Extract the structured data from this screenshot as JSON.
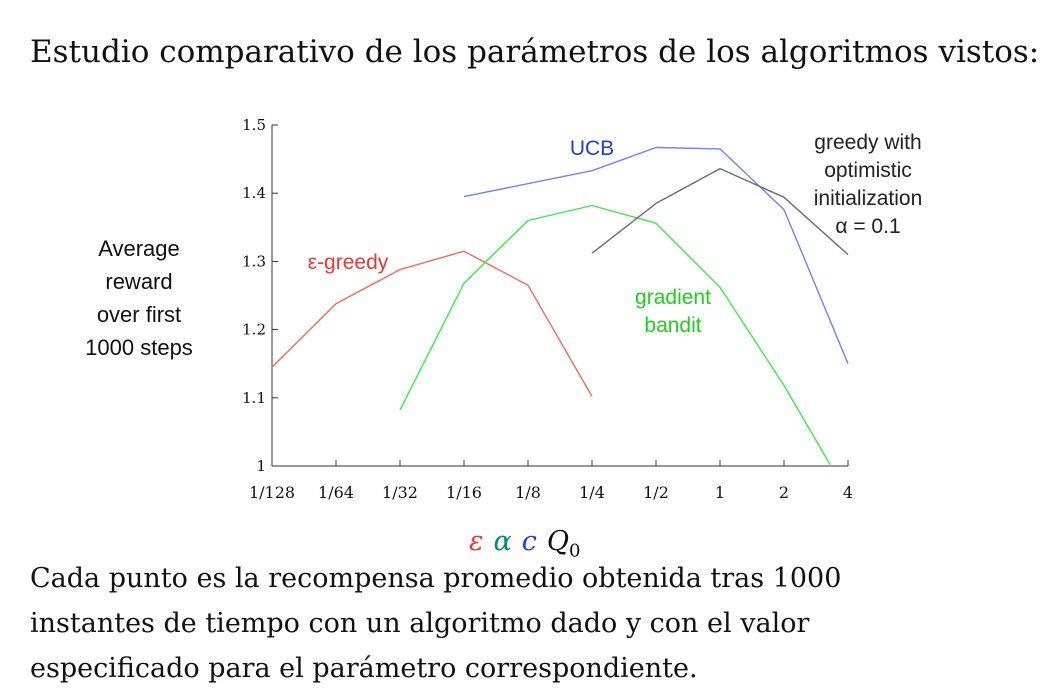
{
  "heading": "Estudio comparativo de los parámetros de los algoritmos vistos:",
  "caption": [
    "Cada punto es la recompensa promedio obtenida tras 1000",
    "instantes de tiempo con un algoritmo dado y con el valor",
    "especificado para el parámetro correspondiente."
  ],
  "param_symbols": [
    {
      "text": "ε",
      "color": "#e53935"
    },
    {
      "text": "α",
      "color": "#00897b"
    },
    {
      "text": "c",
      "color": "#1e3fdd"
    },
    {
      "text": "Q",
      "sub": "0",
      "color": "#111111"
    }
  ],
  "chart_data": {
    "type": "line",
    "title": "",
    "ylabel": [
      "Average",
      "reward",
      "over first",
      "1000 steps"
    ],
    "xlabel": "",
    "x_tick_labels": [
      "1/128",
      "1/64",
      "1/32",
      "1/16",
      "1/8",
      "1/4",
      "1/2",
      "1",
      "2",
      "4"
    ],
    "y_ticks": [
      1,
      1.1,
      1.2,
      1.3,
      1.4,
      1.5
    ],
    "y_tick_labels": [
      "1",
      "1.1",
      "1.2",
      "1.3",
      "1.4",
      "1.5"
    ],
    "ylim": [
      1,
      1.5
    ],
    "x_scale": "log2",
    "series": [
      {
        "name": "ε-greedy",
        "color": "#f06a5e",
        "label_lines": [
          "ε-greedy"
        ],
        "points": [
          [
            0.0078125,
            1.145
          ],
          [
            0.015625,
            1.238
          ],
          [
            0.03125,
            1.288
          ],
          [
            0.0625,
            1.315
          ],
          [
            0.125,
            1.265
          ],
          [
            0.25,
            1.102
          ]
        ]
      },
      {
        "name": "gradient bandit",
        "color": "#3ee84f",
        "label_lines": [
          "gradient",
          "bandit"
        ],
        "points": [
          [
            0.03125,
            1.082
          ],
          [
            0.0625,
            1.268
          ],
          [
            0.125,
            1.36
          ],
          [
            0.25,
            1.382
          ],
          [
            0.5,
            1.356
          ],
          [
            1,
            1.262
          ],
          [
            2,
            1.118
          ],
          [
            3.3,
            1.002
          ]
        ]
      },
      {
        "name": "UCB",
        "color": "#6f84f2",
        "label_lines": [
          "UCB"
        ],
        "points": [
          [
            0.0625,
            1.395
          ],
          [
            0.25,
            1.433
          ],
          [
            0.5,
            1.467
          ],
          [
            1,
            1.465
          ],
          [
            2,
            1.376
          ],
          [
            4,
            1.15
          ]
        ]
      },
      {
        "name": "greedy with optimistic initialization α = 0.1",
        "color": "#6b6b6b",
        "label_lines": [
          "greedy with",
          "optimistic",
          "initialization",
          "α = 0.1"
        ],
        "points": [
          [
            0.25,
            1.312
          ],
          [
            0.5,
            1.385
          ],
          [
            1,
            1.436
          ],
          [
            2,
            1.394
          ],
          [
            4,
            1.31
          ]
        ]
      }
    ]
  }
}
